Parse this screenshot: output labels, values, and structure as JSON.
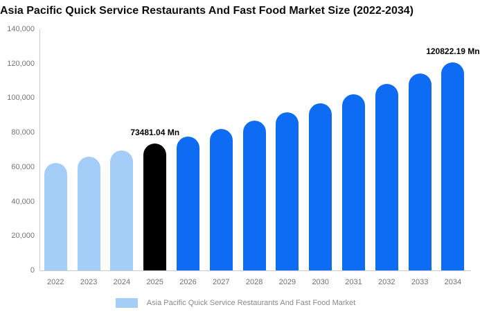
{
  "title": "Asia Pacific Quick Service Restaurants And Fast Food Market Size (2022-2034)",
  "colors": {
    "historical_bar": "#a4cdf8",
    "highlight_bar": "#000000",
    "forecast_bar": "#0e6bf4",
    "axis_line": "#cccccc",
    "tick_text": "#757575",
    "legend_text": "#8a8a8a"
  },
  "chart_data": {
    "type": "bar",
    "title": "Asia Pacific Quick Service Restaurants And Fast Food Market Size (2022-2034)",
    "xlabel": "",
    "ylabel": "",
    "ylim": [
      0,
      140000
    ],
    "grid": false,
    "legend_position": "bottom-center",
    "categories": [
      "2022",
      "2023",
      "2024",
      "2025",
      "2026",
      "2027",
      "2028",
      "2029",
      "2030",
      "2031",
      "2032",
      "2033",
      "2034"
    ],
    "values": [
      62252.3,
      65793.3,
      69530.9,
      73481.04,
      77655.6,
      82067.4,
      86729.9,
      91657.2,
      96862.5,
      102366.0,
      108182.1,
      114328.6,
      120822.19
    ],
    "bar_colors": [
      "#a4cdf8",
      "#a4cdf8",
      "#a4cdf8",
      "#000000",
      "#0e6bf4",
      "#0e6bf4",
      "#0e6bf4",
      "#0e6bf4",
      "#0e6bf4",
      "#0e6bf4",
      "#0e6bf4",
      "#0e6bf4",
      "#0e6bf4"
    ],
    "ytick_labels": [
      "140,000",
      "120,000",
      "100,000",
      "80,000",
      "60,000",
      "40,000",
      "20,000",
      "0"
    ],
    "annotations": [
      {
        "index": 3,
        "category": "2025",
        "text": "73481.04 Mn"
      },
      {
        "index": 12,
        "category": "2034",
        "text": "120822.19 Mn"
      }
    ],
    "legend": [
      {
        "label": "Asia Pacific Quick Service Restaurants And Fast Food Market",
        "color": "#a4cdf8"
      }
    ]
  }
}
